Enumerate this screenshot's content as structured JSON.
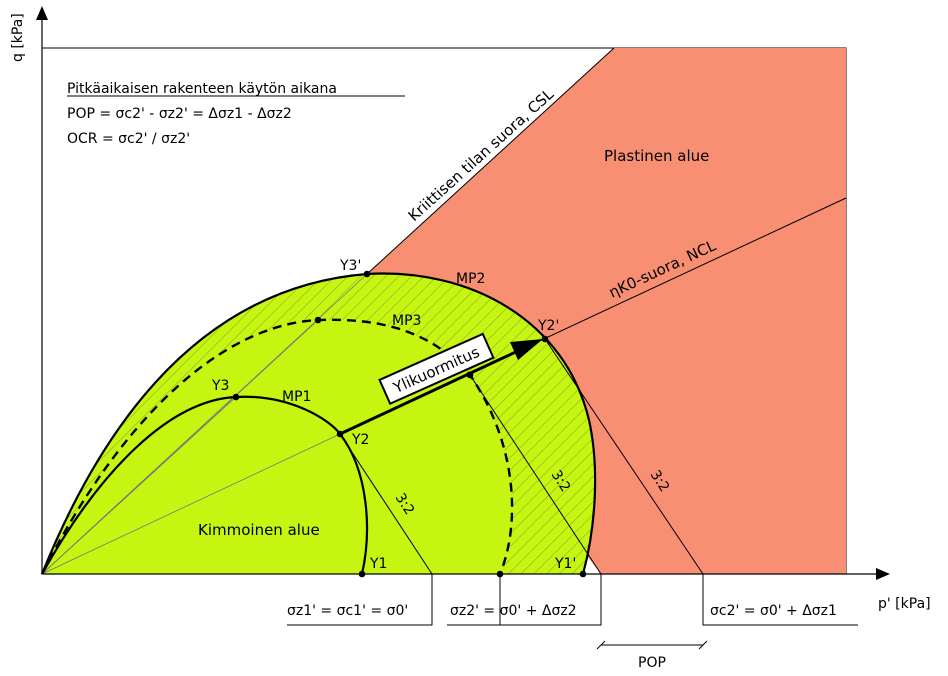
{
  "axes": {
    "y_label": "q [kPa]",
    "x_label": "p' [kPa]"
  },
  "info_box": {
    "title": "Pitkäaikaisen rakenteen käytön aikana",
    "line_pop": "POP = σc2' - σz2' = Δσz1 - Δσz2",
    "line_ocr": "OCR = σc2' / σz2'"
  },
  "regions": {
    "plastic": "Plastinen alue",
    "elastic": "Kimmoinen alue"
  },
  "lines": {
    "csl": "Kriittisen tilan suora, CSL",
    "ncl": "ηK0-suora, NCL",
    "overload": "Ylikuormitus"
  },
  "curves": {
    "mp1": "MP1",
    "mp2": "MP2",
    "mp3": "MP3"
  },
  "points": {
    "y1": "Y1",
    "y2": "Y2",
    "y3": "Y3",
    "y1p": "Y1'",
    "y2p": "Y2'",
    "y3p": "Y3'"
  },
  "slope_ratio": "3:2",
  "stress_labels": {
    "s1": "σz1' = σc1' = σ0'",
    "s2": "σz2' = σ0' + Δσz2",
    "s3": "σc2' = σ0' + Δσz1"
  },
  "pop_label": "POP",
  "colors": {
    "plastic": "#f88f73",
    "elastic": "#c5f511",
    "hatch": "#7a8a3a",
    "line": "#000000"
  }
}
